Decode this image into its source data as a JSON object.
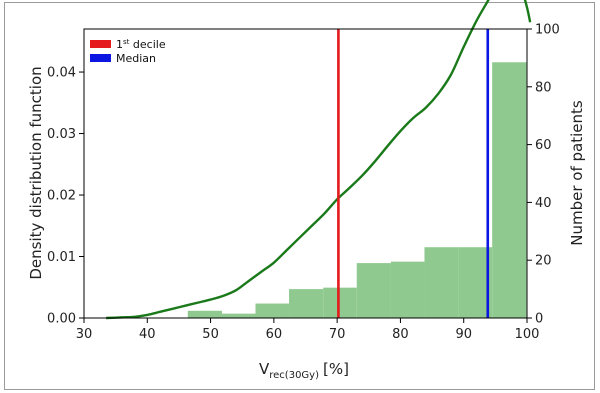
{
  "chart_data": {
    "type": "bar",
    "xlabel": "V",
    "xlabel_sub": "rec(30Gy)",
    "xlabel_unit": "[%]",
    "ylabel_left": "Density distribution function",
    "ylabel_right": "Number of patients",
    "xlim": [
      30,
      100
    ],
    "ylim_left": [
      0,
      0.047
    ],
    "ylim_right": [
      0,
      100
    ],
    "x_ticks": [
      30,
      40,
      50,
      60,
      70,
      80,
      90,
      100
    ],
    "y_left_ticks": [
      0.0,
      0.01,
      0.02,
      0.03,
      0.04
    ],
    "y_left_tick_labels": [
      "0.00",
      "0.01",
      "0.02",
      "0.03",
      "0.04"
    ],
    "y_right_ticks": [
      0,
      20,
      40,
      60,
      80,
      100
    ],
    "histogram": {
      "name": "Number of patients",
      "color": "#90c98f",
      "bins": [
        {
          "x0": 46.4,
          "x1": 51.8,
          "count": 2.5
        },
        {
          "x0": 51.8,
          "x1": 57.1,
          "count": 1.5
        },
        {
          "x0": 57.1,
          "x1": 62.4,
          "count": 5
        },
        {
          "x0": 62.4,
          "x1": 67.8,
          "count": 10
        },
        {
          "x0": 67.8,
          "x1": 73.1,
          "count": 10.5
        },
        {
          "x0": 73.1,
          "x1": 78.5,
          "count": 19
        },
        {
          "x0": 78.5,
          "x1": 83.8,
          "count": 19.5
        },
        {
          "x0": 83.8,
          "x1": 89.2,
          "count": 24.5
        },
        {
          "x0": 89.2,
          "x1": 94.5,
          "count": 24.5
        },
        {
          "x0": 94.5,
          "x1": 99.9,
          "count": 88.5
        }
      ]
    },
    "density_curve": {
      "color": "#1a7a1a",
      "x": [
        33.5,
        36,
        38,
        40,
        42,
        44,
        46,
        48,
        50,
        52,
        54,
        56,
        58,
        60,
        62,
        64,
        66,
        68,
        70,
        72,
        74,
        76,
        78,
        80,
        82,
        84,
        86,
        88,
        90,
        92,
        94,
        95,
        96,
        97,
        97.5,
        98,
        98.5,
        99,
        100,
        100.5
      ],
      "y": [
        0.0,
        0.0001,
        0.0002,
        0.0005,
        0.001,
        0.0015,
        0.002,
        0.0025,
        0.003,
        0.0036,
        0.0045,
        0.006,
        0.0075,
        0.009,
        0.011,
        0.013,
        0.015,
        0.017,
        0.0193,
        0.0212,
        0.0232,
        0.0255,
        0.028,
        0.0304,
        0.0325,
        0.0342,
        0.0365,
        0.0396,
        0.0441,
        0.0483,
        0.0519,
        0.0539,
        0.0555,
        0.0566,
        0.0569,
        0.0566,
        0.0557,
        0.0542,
        0.0505,
        0.0481
      ]
    },
    "vlines": [
      {
        "name": "1st decile",
        "x": 70.2,
        "color": "#e41a1c"
      },
      {
        "name": "Median",
        "x": 93.8,
        "color": "#0b16e0"
      }
    ],
    "legend": {
      "placement": "top-left",
      "items": [
        {
          "label": "1",
          "sup": "st",
          "rest": " decile",
          "color": "#e41a1c"
        },
        {
          "label": "Median",
          "sup": "",
          "rest": "",
          "color": "#0b16e0"
        }
      ]
    }
  }
}
